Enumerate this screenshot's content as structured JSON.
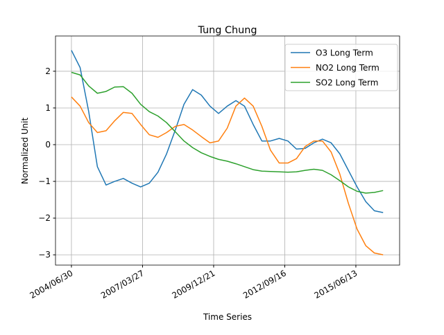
{
  "chart_data": {
    "type": "line",
    "title": "Tung Chung",
    "xlabel": "Time Series",
    "ylabel": "Normalized Unit",
    "x": [
      "2004/06/30",
      "2004/10/30",
      "2005/02/28",
      "2005/06/30",
      "2005/10/30",
      "2006/02/28",
      "2006/06/30",
      "2006/10/30",
      "2007/02/28",
      "2007/06/30",
      "2007/10/30",
      "2008/02/28",
      "2008/06/30",
      "2008/10/30",
      "2009/02/28",
      "2009/06/30",
      "2009/10/30",
      "2010/02/28",
      "2010/06/30",
      "2010/10/30",
      "2011/02/28",
      "2011/06/30",
      "2011/10/30",
      "2012/02/28",
      "2012/06/30",
      "2012/10/30",
      "2013/02/28",
      "2013/06/30",
      "2013/10/30",
      "2014/02/28",
      "2014/06/30",
      "2014/10/30",
      "2015/02/28",
      "2015/06/30",
      "2015/10/30",
      "2016/02/28",
      "2016/06/30"
    ],
    "series": [
      {
        "name": "O3 Long Term",
        "color": "#1f77b4",
        "values": [
          2.57,
          2.1,
          0.9,
          -0.6,
          -1.1,
          -1.0,
          -0.92,
          -1.05,
          -1.15,
          -1.05,
          -0.75,
          -0.25,
          0.4,
          1.1,
          1.5,
          1.35,
          1.05,
          0.85,
          1.05,
          1.2,
          1.05,
          0.55,
          0.1,
          0.1,
          0.17,
          0.1,
          -0.12,
          -0.1,
          0.05,
          0.15,
          0.05,
          -0.25,
          -0.7,
          -1.15,
          -1.55,
          -1.8,
          -1.85
        ]
      },
      {
        "name": "NO2 Long Term",
        "color": "#ff7f0e",
        "values": [
          1.3,
          1.05,
          0.6,
          0.33,
          0.38,
          0.65,
          0.88,
          0.85,
          0.55,
          0.27,
          0.2,
          0.33,
          0.5,
          0.55,
          0.4,
          0.22,
          0.05,
          0.1,
          0.45,
          1.05,
          1.27,
          1.05,
          0.5,
          -0.15,
          -0.5,
          -0.5,
          -0.38,
          -0.05,
          0.1,
          0.1,
          -0.2,
          -0.8,
          -1.6,
          -2.3,
          -2.75,
          -2.95,
          -3.0
        ]
      },
      {
        "name": "SO2 Long Term",
        "color": "#2ca02c",
        "values": [
          1.97,
          1.9,
          1.6,
          1.4,
          1.45,
          1.57,
          1.58,
          1.4,
          1.1,
          0.9,
          0.78,
          0.6,
          0.35,
          0.1,
          -0.08,
          -0.22,
          -0.32,
          -0.4,
          -0.45,
          -0.52,
          -0.6,
          -0.68,
          -0.72,
          -0.73,
          -0.74,
          -0.75,
          -0.74,
          -0.7,
          -0.67,
          -0.7,
          -0.82,
          -0.98,
          -1.15,
          -1.27,
          -1.32,
          -1.3,
          -1.25
        ]
      }
    ],
    "xlim": [
      "2003/11/19",
      "2017/02/17"
    ],
    "xticks": [
      "2004/06/30",
      "2007/03/27",
      "2009/12/21",
      "2012/09/16",
      "2015/06/13"
    ],
    "ylim": [
      -3.28,
      2.96
    ],
    "yticks": [
      {
        "value": -3,
        "label": "−3"
      },
      {
        "value": -2,
        "label": "−2"
      },
      {
        "value": -1,
        "label": "−1"
      },
      0,
      1,
      2
    ],
    "grid": true,
    "legend": "upper right"
  }
}
